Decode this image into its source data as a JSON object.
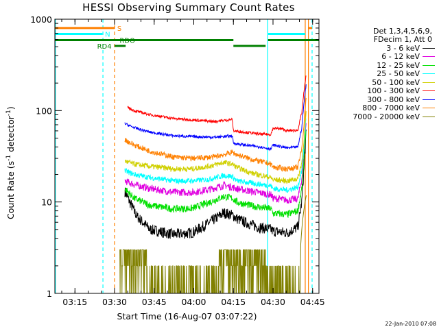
{
  "chart_data": {
    "type": "line",
    "title": "HESSI Observing Summary Count Rates",
    "xlabel": "Start Time (16-Aug-07 03:07:22)",
    "ylabel_main": "Count Rate (s",
    "ylabel_sup1": "-1",
    "ylabel_mid": " detector",
    "ylabel_sup2": "-1",
    "ylabel_end": ")",
    "y_scale": "log",
    "ylim": [
      1,
      1000
    ],
    "xlim_minutes": [
      0,
      100
    ],
    "xticks": [
      {
        "label": "03:15",
        "minute": 7.6
      },
      {
        "label": "03:30",
        "minute": 22.6
      },
      {
        "label": "03:45",
        "minute": 37.6
      },
      {
        "label": "04:00",
        "minute": 52.6
      },
      {
        "label": "04:15",
        "minute": 67.6
      },
      {
        "label": "04:30",
        "minute": 82.6
      },
      {
        "label": "04:45",
        "minute": 97.6
      }
    ],
    "yticks": [
      {
        "label": "1",
        "value": 1
      },
      {
        "label": "10",
        "value": 10
      },
      {
        "label": "100",
        "value": 100
      },
      {
        "label": "1000",
        "value": 1000
      }
    ],
    "legend_header": [
      "Det 1,3,4,5,6,9,",
      "FDecim 1, Att 0"
    ],
    "series": [
      {
        "name": "3 - 6 keV",
        "color": "#000000",
        "noise": 0.06,
        "points": [
          [
            26.5,
            13
          ],
          [
            28,
            10.5
          ],
          [
            31,
            7
          ],
          [
            36,
            5
          ],
          [
            45,
            4.4
          ],
          [
            52,
            4.6
          ],
          [
            58,
            5.8
          ],
          [
            64,
            7.6
          ],
          [
            67.2,
            7.2
          ],
          [
            68.8,
            6.6
          ],
          [
            72,
            6
          ],
          [
            77,
            5.3
          ],
          [
            81.8,
            5.0
          ],
          [
            82.6,
            4.8
          ],
          [
            88,
            4.6
          ],
          [
            92,
            5.3
          ],
          [
            93.5,
            10
          ],
          [
            94.3,
            23
          ],
          [
            95.2,
            60
          ]
        ]
      },
      {
        "name": "6 - 12 keV",
        "color": "#e000e0",
        "noise": 0.04,
        "points": [
          [
            26.5,
            17
          ],
          [
            30,
            15.5
          ],
          [
            36,
            14
          ],
          [
            45,
            12.8
          ],
          [
            52,
            12.7
          ],
          [
            58,
            13.6
          ],
          [
            64,
            15.2
          ],
          [
            67.2,
            14.5
          ],
          [
            68.8,
            14
          ],
          [
            75,
            13
          ],
          [
            81.8,
            12
          ],
          [
            82.6,
            11
          ],
          [
            88,
            10.5
          ],
          [
            92,
            10.8
          ],
          [
            93.5,
            18
          ],
          [
            94.3,
            33
          ],
          [
            95.2,
            80
          ]
        ]
      },
      {
        "name": "12 - 25 keV",
        "color": "#00e000",
        "noise": 0.04,
        "points": [
          [
            26.5,
            14
          ],
          [
            30,
            11
          ],
          [
            36,
            9.2
          ],
          [
            45,
            8.4
          ],
          [
            52,
            8.5
          ],
          [
            58,
            9.8
          ],
          [
            64,
            11.5
          ],
          [
            67.2,
            11
          ],
          [
            68.8,
            10
          ],
          [
            75,
            9
          ],
          [
            81.8,
            8.4
          ],
          [
            82.6,
            7.5
          ],
          [
            88,
            7.3
          ],
          [
            92,
            8
          ],
          [
            93.5,
            14
          ],
          [
            94.3,
            28
          ],
          [
            95.2,
            70
          ]
        ]
      },
      {
        "name": "25 - 50 keV",
        "color": "#00ffff",
        "noise": 0.03,
        "points": [
          [
            26.5,
            22
          ],
          [
            30,
            20
          ],
          [
            36,
            18.5
          ],
          [
            45,
            17
          ],
          [
            52,
            17
          ],
          [
            58,
            17.6
          ],
          [
            64,
            19.5
          ],
          [
            67.2,
            19
          ],
          [
            68.8,
            17
          ],
          [
            75,
            16
          ],
          [
            81.8,
            15
          ],
          [
            82.6,
            14
          ],
          [
            88,
            13.5
          ],
          [
            92,
            14.5
          ],
          [
            93.5,
            22
          ],
          [
            94.3,
            40
          ],
          [
            95.2,
            90
          ]
        ]
      },
      {
        "name": "50 - 100 keV",
        "color": "#d0d000",
        "noise": 0.03,
        "points": [
          [
            26.5,
            28
          ],
          [
            30,
            26
          ],
          [
            36,
            24.5
          ],
          [
            45,
            23
          ],
          [
            52,
            23
          ],
          [
            58,
            24.5
          ],
          [
            64,
            27
          ],
          [
            67.2,
            26
          ],
          [
            68.8,
            24
          ],
          [
            75,
            20.5
          ],
          [
            81.8,
            18.5
          ],
          [
            82.6,
            17.5
          ],
          [
            88,
            17
          ],
          [
            92,
            18
          ],
          [
            93.5,
            27
          ],
          [
            94.3,
            48
          ],
          [
            95.2,
            100
          ]
        ]
      },
      {
        "name": "100 - 300 keV",
        "color": "#ff0000",
        "noise": 0.015,
        "points": [
          [
            27.5,
            108
          ],
          [
            30,
            100
          ],
          [
            36,
            90
          ],
          [
            45,
            82
          ],
          [
            52,
            79
          ],
          [
            60,
            76
          ],
          [
            64,
            78
          ],
          [
            67.2,
            80
          ],
          [
            67.6,
            60
          ],
          [
            72,
            58
          ],
          [
            78,
            55
          ],
          [
            81.8,
            55
          ],
          [
            82.6,
            64
          ],
          [
            86,
            63
          ],
          [
            88,
            60
          ],
          [
            92,
            61
          ],
          [
            93.5,
            95
          ],
          [
            94.3,
            160
          ],
          [
            95.2,
            250
          ]
        ]
      },
      {
        "name": "300 - 800 keV",
        "color": "#0000ff",
        "noise": 0.015,
        "points": [
          [
            26.5,
            72
          ],
          [
            30,
            65
          ],
          [
            36,
            58
          ],
          [
            45,
            53
          ],
          [
            52,
            52
          ],
          [
            60,
            51
          ],
          [
            64,
            52
          ],
          [
            67.2,
            53
          ],
          [
            67.6,
            44
          ],
          [
            72,
            42
          ],
          [
            78,
            40
          ],
          [
            81.8,
            38
          ],
          [
            82.6,
            42
          ],
          [
            88,
            39
          ],
          [
            92,
            40
          ],
          [
            93.5,
            65
          ],
          [
            94.3,
            120
          ],
          [
            95.2,
            200
          ]
        ]
      },
      {
        "name": "800 - 7000 keV",
        "color": "#ff8000",
        "noise": 0.03,
        "points": [
          [
            26.5,
            48
          ],
          [
            30,
            42
          ],
          [
            36,
            36
          ],
          [
            45,
            31
          ],
          [
            52,
            30
          ],
          [
            60,
            31
          ],
          [
            64,
            33
          ],
          [
            67.2,
            35
          ],
          [
            68.8,
            33
          ],
          [
            75,
            29
          ],
          [
            81.8,
            26
          ],
          [
            82.6,
            24
          ],
          [
            88,
            23
          ],
          [
            92,
            24
          ],
          [
            93.5,
            38
          ],
          [
            94.3,
            70
          ],
          [
            95.2,
            150
          ]
        ]
      },
      {
        "name": "7000 - 20000 keV",
        "color": "#808000",
        "noise": 0.0,
        "points": []
      }
    ],
    "state_bars": [
      {
        "label": "S",
        "color": "#ff8000",
        "level": 800,
        "segments": [
          [
            0,
            22.6
          ],
          [
            95.9,
            97.4
          ]
        ]
      },
      {
        "label": "N",
        "color": "#00ffff",
        "level": 690,
        "segments": [
          [
            0,
            18
          ],
          [
            80.7,
            94.8
          ]
        ]
      },
      {
        "label": "RDO",
        "color": "#008000",
        "level": 590,
        "segments": [
          [
            0,
            67.6
          ],
          [
            80.7,
            100
          ]
        ]
      },
      {
        "label": "RD4",
        "color": "#008000",
        "level": 510,
        "segments": [
          [
            22.6,
            26.8
          ],
          [
            67.6,
            79.8
          ]
        ]
      }
    ],
    "vlines": [
      {
        "minute": 0.2,
        "color": "#00ffff",
        "style": "solid"
      },
      {
        "minute": 18.2,
        "color": "#00ffff",
        "style": "dashed"
      },
      {
        "minute": 22.6,
        "color": "#ff8000",
        "style": "dashed"
      },
      {
        "minute": 80.6,
        "color": "#00ffff",
        "style": "solid"
      },
      {
        "minute": 94.8,
        "color": "#ff8000",
        "style": "solid"
      },
      {
        "minute": 96.0,
        "color": "#ff8000",
        "style": "solid"
      },
      {
        "minute": 97.4,
        "color": "#00ffff",
        "style": "dashed"
      }
    ],
    "grid": false,
    "legend_position": "right"
  },
  "timestamp": "22-Jan-2010 07:08"
}
